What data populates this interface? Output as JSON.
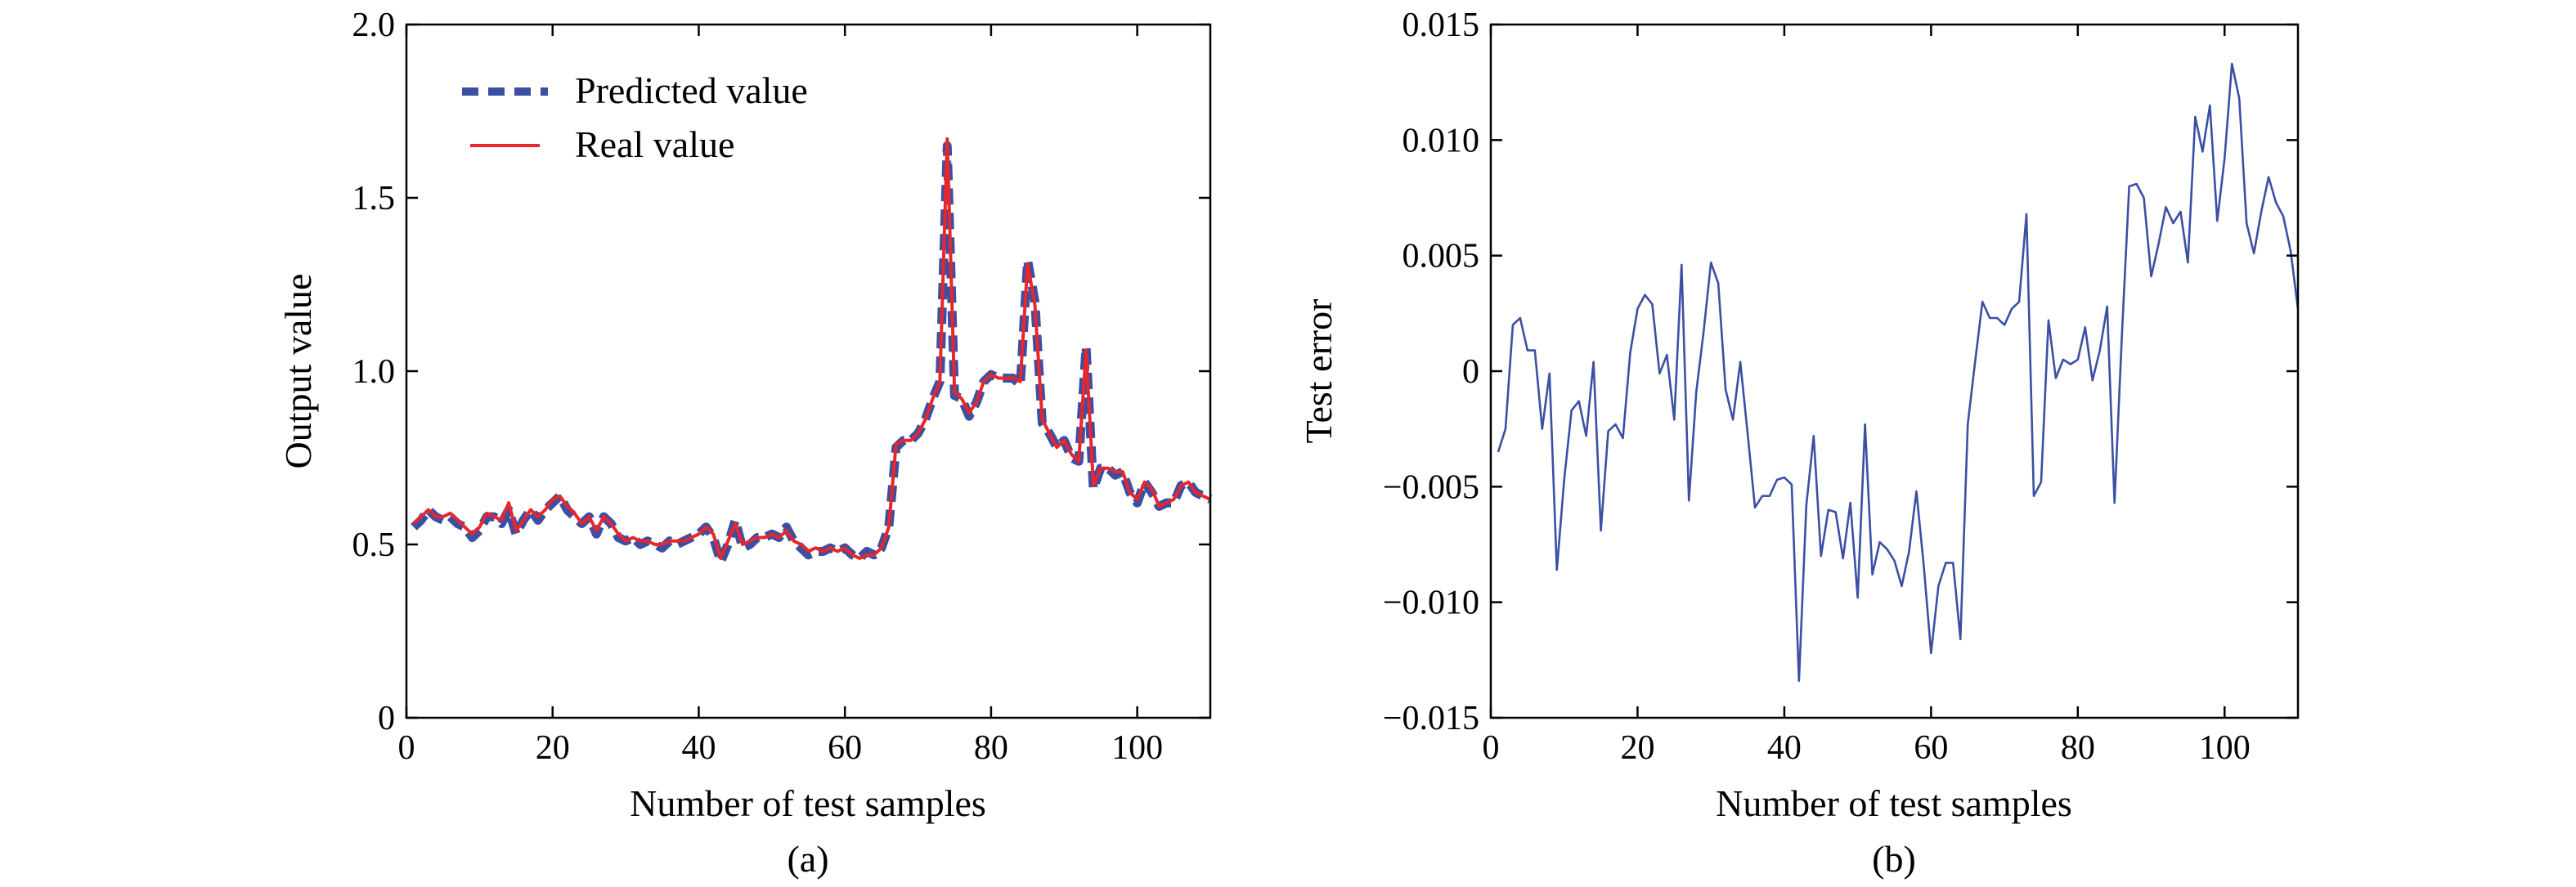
{
  "chart_data": [
    {
      "type": "line",
      "panel_label": "(a)",
      "xlabel": "Number of test samples",
      "ylabel": "Output value",
      "xlim": [
        0,
        110
      ],
      "ylim": [
        0,
        2.0
      ],
      "xticks": [
        0,
        20,
        40,
        60,
        80,
        100
      ],
      "yticks": [
        0,
        0.5,
        1.0,
        1.5,
        2.0
      ],
      "xtick_labels": [
        "0",
        "20",
        "40",
        "60",
        "80",
        "100"
      ],
      "ytick_labels": [
        "0",
        "0.5",
        "1.0",
        "1.5",
        "2.0"
      ],
      "legend_position": "top-left",
      "grid": false,
      "series": [
        {
          "name": "Predicted value",
          "color": "#3b4fa3",
          "style": "dashed",
          "x": [
            1,
            2,
            3,
            4,
            5,
            6,
            7,
            8,
            9,
            10,
            11,
            12,
            13,
            14,
            15,
            16,
            17,
            18,
            19,
            20,
            21,
            22,
            23,
            24,
            25,
            26,
            27,
            28,
            29,
            30,
            31,
            32,
            33,
            34,
            35,
            36,
            37,
            38,
            39,
            40,
            41,
            42,
            43,
            44,
            45,
            46,
            47,
            48,
            49,
            50,
            51,
            52,
            53,
            54,
            55,
            56,
            57,
            58,
            59,
            60,
            61,
            62,
            63,
            64,
            65,
            66,
            67,
            68,
            69,
            70,
            71,
            72,
            73,
            74,
            75,
            76,
            77,
            78,
            79,
            80,
            81,
            82,
            83,
            84,
            85,
            86,
            87,
            88,
            89,
            90,
            91,
            92,
            93,
            94,
            95,
            96,
            97,
            98,
            99,
            100,
            101,
            102,
            103,
            104,
            105,
            106,
            107,
            108,
            109,
            110
          ],
          "values": [
            0.55,
            0.57,
            0.6,
            0.58,
            0.57,
            0.58,
            0.56,
            0.55,
            0.52,
            0.54,
            0.58,
            0.58,
            0.56,
            0.6,
            0.53,
            0.57,
            0.6,
            0.57,
            0.6,
            0.62,
            0.64,
            0.6,
            0.58,
            0.56,
            0.58,
            0.53,
            0.58,
            0.56,
            0.52,
            0.51,
            0.52,
            0.5,
            0.51,
            0.5,
            0.49,
            0.51,
            0.5,
            0.51,
            0.52,
            0.53,
            0.55,
            0.52,
            0.45,
            0.5,
            0.57,
            0.49,
            0.5,
            0.52,
            0.52,
            0.53,
            0.52,
            0.55,
            0.51,
            0.49,
            0.47,
            0.48,
            0.48,
            0.49,
            0.48,
            0.49,
            0.47,
            0.46,
            0.48,
            0.47,
            0.49,
            0.55,
            0.78,
            0.8,
            0.8,
            0.82,
            0.86,
            0.92,
            0.97,
            1.65,
            0.93,
            0.92,
            0.87,
            0.91,
            0.97,
            0.99,
            0.98,
            0.98,
            0.98,
            0.96,
            1.32,
            1.2,
            0.85,
            0.82,
            0.78,
            0.8,
            0.75,
            0.74,
            1.07,
            0.66,
            0.72,
            0.72,
            0.7,
            0.71,
            0.65,
            0.62,
            0.68,
            0.65,
            0.61,
            0.62,
            0.62,
            0.67,
            0.68,
            0.65,
            0.64,
            0.63
          ]
        },
        {
          "name": "Real value",
          "color": "#e8262b",
          "style": "solid",
          "x": [
            1,
            2,
            3,
            4,
            5,
            6,
            7,
            8,
            9,
            10,
            11,
            12,
            13,
            14,
            15,
            16,
            17,
            18,
            19,
            20,
            21,
            22,
            23,
            24,
            25,
            26,
            27,
            28,
            29,
            30,
            31,
            32,
            33,
            34,
            35,
            36,
            37,
            38,
            39,
            40,
            41,
            42,
            43,
            44,
            45,
            46,
            47,
            48,
            49,
            50,
            51,
            52,
            53,
            54,
            55,
            56,
            57,
            58,
            59,
            60,
            61,
            62,
            63,
            64,
            65,
            66,
            67,
            68,
            69,
            70,
            71,
            72,
            73,
            74,
            75,
            76,
            77,
            78,
            79,
            80,
            81,
            82,
            83,
            84,
            85,
            86,
            87,
            88,
            89,
            90,
            91,
            92,
            93,
            94,
            95,
            96,
            97,
            98,
            99,
            100,
            101,
            102,
            103,
            104,
            105,
            106,
            107,
            108,
            109,
            110
          ],
          "values": [
            0.56,
            0.58,
            0.6,
            0.58,
            0.58,
            0.59,
            0.57,
            0.55,
            0.53,
            0.55,
            0.59,
            0.58,
            0.57,
            0.62,
            0.54,
            0.57,
            0.6,
            0.58,
            0.6,
            0.63,
            0.64,
            0.61,
            0.59,
            0.56,
            0.58,
            0.54,
            0.58,
            0.56,
            0.53,
            0.51,
            0.52,
            0.51,
            0.51,
            0.5,
            0.5,
            0.51,
            0.51,
            0.51,
            0.52,
            0.53,
            0.55,
            0.53,
            0.46,
            0.51,
            0.56,
            0.5,
            0.51,
            0.52,
            0.52,
            0.53,
            0.52,
            0.54,
            0.51,
            0.5,
            0.48,
            0.49,
            0.48,
            0.49,
            0.48,
            0.49,
            0.47,
            0.46,
            0.47,
            0.47,
            0.49,
            0.55,
            0.79,
            0.8,
            0.8,
            0.82,
            0.86,
            0.92,
            0.97,
            1.67,
            0.94,
            0.92,
            0.88,
            0.91,
            0.97,
            0.99,
            0.98,
            0.98,
            0.98,
            0.97,
            1.31,
            1.19,
            0.86,
            0.82,
            0.78,
            0.8,
            0.76,
            0.74,
            1.06,
            0.67,
            0.72,
            0.72,
            0.71,
            0.71,
            0.65,
            0.63,
            0.68,
            0.66,
            0.61,
            0.62,
            0.63,
            0.67,
            0.68,
            0.65,
            0.64,
            0.63
          ]
        }
      ]
    },
    {
      "type": "line",
      "panel_label": "(b)",
      "xlabel": "Number of test samples",
      "ylabel": "Test error",
      "xlim": [
        0,
        110
      ],
      "ylim": [
        -0.015,
        0.015
      ],
      "xticks": [
        0,
        20,
        40,
        60,
        80,
        100
      ],
      "yticks": [
        -0.015,
        -0.01,
        -0.005,
        0,
        0.005,
        0.01,
        0.015
      ],
      "xtick_labels": [
        "0",
        "20",
        "40",
        "60",
        "80",
        "100"
      ],
      "ytick_labels": [
        "−0.015",
        "−0.010",
        "−0.005",
        "0",
        "0.005",
        "0.010",
        "0.015"
      ],
      "grid": false,
      "series": [
        {
          "color": "#3b4fa3",
          "style": "solid",
          "x": [
            1,
            2,
            3,
            4,
            5,
            6,
            7,
            8,
            9,
            10,
            11,
            12,
            13,
            14,
            15,
            16,
            17,
            18,
            19,
            20,
            21,
            22,
            23,
            24,
            25,
            26,
            27,
            28,
            29,
            30,
            31,
            32,
            33,
            34,
            35,
            36,
            37,
            38,
            39,
            40,
            41,
            42,
            43,
            44,
            45,
            46,
            47,
            48,
            49,
            50,
            51,
            52,
            53,
            54,
            55,
            56,
            57,
            58,
            59,
            60,
            61,
            62,
            63,
            64,
            65,
            66,
            67,
            68,
            69,
            70,
            71,
            72,
            73,
            74,
            75,
            76,
            77,
            78,
            79,
            80,
            81,
            82,
            83,
            84,
            85,
            86,
            87,
            88,
            89,
            90,
            91,
            92,
            93,
            94,
            95,
            96,
            97,
            98,
            99,
            100,
            101,
            102,
            103,
            104,
            105,
            106,
            107,
            108,
            109,
            110
          ],
          "values": [
            -0.0035,
            -0.0025,
            0.002,
            0.0023,
            0.0009,
            0.0009,
            -0.0025,
            -0.0001,
            -0.0086,
            -0.0047,
            -0.0017,
            -0.0013,
            -0.0028,
            0.0004,
            -0.0069,
            -0.0026,
            -0.0023,
            -0.0029,
            0.0008,
            0.0027,
            0.0033,
            0.0029,
            -0.0001,
            0.0007,
            -0.0021,
            0.0046,
            -0.0056,
            -0.0009,
            0.0017,
            0.0047,
            0.0038,
            -0.0008,
            -0.0021,
            0.0004,
            -0.0027,
            -0.0059,
            -0.0054,
            -0.0054,
            -0.0047,
            -0.0046,
            -0.0049,
            -0.0134,
            -0.0058,
            -0.0028,
            -0.008,
            -0.006,
            -0.0061,
            -0.0081,
            -0.0057,
            -0.0098,
            -0.0023,
            -0.0088,
            -0.0074,
            -0.0077,
            -0.0082,
            -0.0093,
            -0.0078,
            -0.0052,
            -0.0084,
            -0.0122,
            -0.0093,
            -0.0083,
            -0.0083,
            -0.0116,
            -0.0023,
            0.0004,
            0.003,
            0.0023,
            0.0023,
            0.002,
            0.0027,
            0.003,
            0.0068,
            -0.0054,
            -0.0048,
            0.0022,
            -0.0003,
            0.0005,
            0.0003,
            0.0005,
            0.0019,
            -0.0004,
            0.0009,
            0.0028,
            -0.0057,
            0.0015,
            0.008,
            0.0081,
            0.0075,
            0.0041,
            0.0055,
            0.0071,
            0.0064,
            0.0069,
            0.0047,
            0.011,
            0.0095,
            0.0115,
            0.0065,
            0.0092,
            0.0133,
            0.0118,
            0.0064,
            0.0051,
            0.0069,
            0.0084,
            0.0073,
            0.0067,
            0.0052,
            0.0027
          ]
        }
      ]
    }
  ]
}
